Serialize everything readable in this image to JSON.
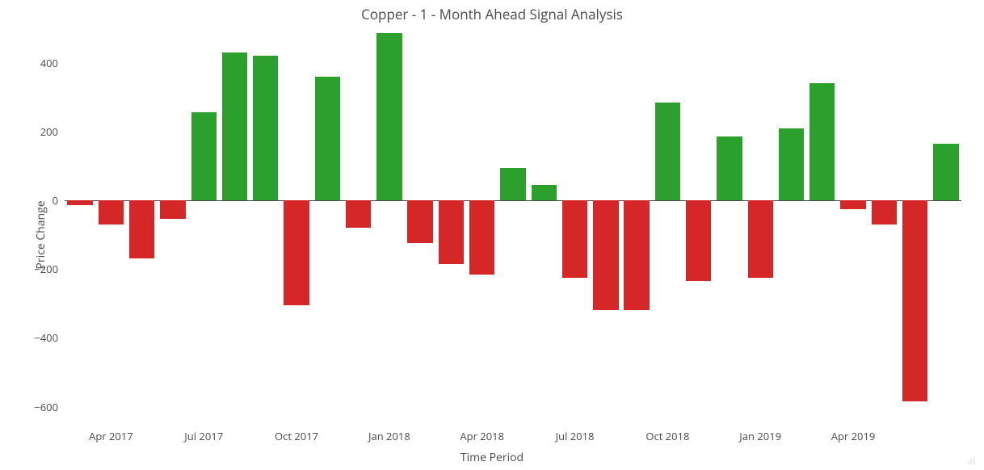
{
  "chart": {
    "type": "bar",
    "title": "Copper - 1 - Month Ahead Signal Analysis",
    "title_fontsize": 17,
    "xlabel": "Time Period",
    "ylabel": "Price Change",
    "label_fontsize": 14,
    "tick_fontsize": 13,
    "font_family": "Open Sans, Helvetica Neue, Arial, sans-serif",
    "background_color": "#ffffff",
    "zero_line_color": "#4a4a4a",
    "text_color": "#4a4a4a",
    "yaxis": {
      "min": -650,
      "max": 500,
      "ticks": [
        -600,
        -400,
        -200,
        0,
        200,
        400
      ]
    },
    "xaxis": {
      "ticks": [
        {
          "index": 1,
          "label": "Apr 2017"
        },
        {
          "index": 4,
          "label": "Jul 2017"
        },
        {
          "index": 7,
          "label": "Oct 2017"
        },
        {
          "index": 10,
          "label": "Jan 2018"
        },
        {
          "index": 13,
          "label": "Apr 2018"
        },
        {
          "index": 16,
          "label": "Jul 2018"
        },
        {
          "index": 19,
          "label": "Oct 2018"
        },
        {
          "index": 22,
          "label": "Jan 2019"
        },
        {
          "index": 25,
          "label": "Apr 2019"
        }
      ]
    },
    "bar_width_ratio": 0.82,
    "colors": {
      "positive": "#2ca02c",
      "negative": "#d62728"
    },
    "values": [
      -15,
      -70,
      -170,
      -55,
      255,
      430,
      420,
      -305,
      360,
      -80,
      485,
      -125,
      -185,
      -215,
      95,
      45,
      -225,
      -320,
      -320,
      285,
      -235,
      185,
      -225,
      210,
      340,
      -25,
      -70,
      -585,
      165
    ]
  }
}
